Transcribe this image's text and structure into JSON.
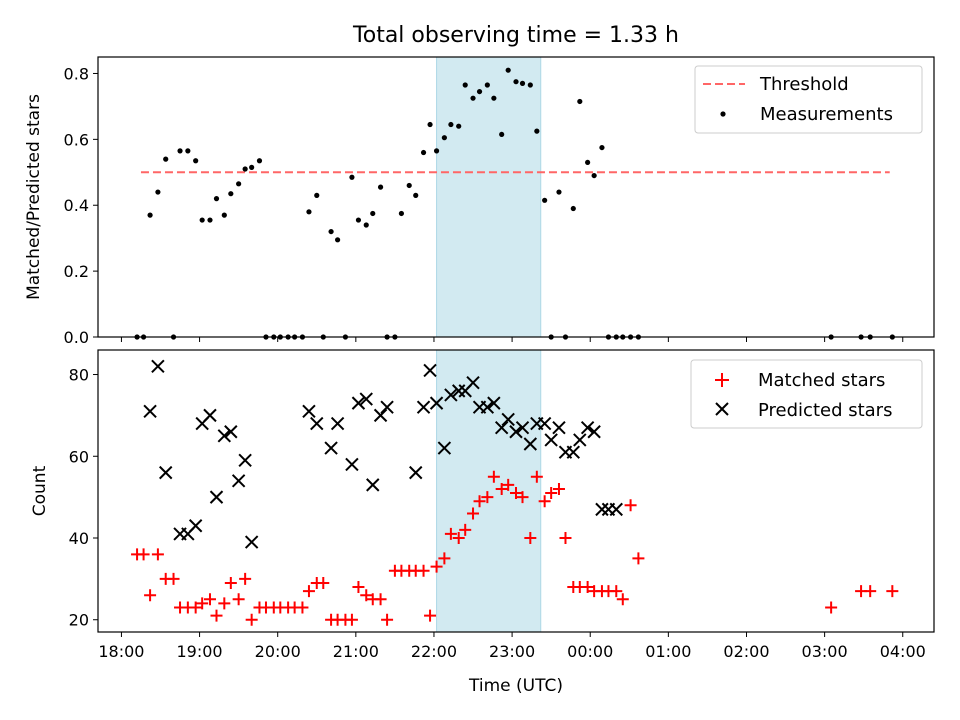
{
  "chart_data": {
    "title": "Total observing time = 1.33 h",
    "x_axis": {
      "label": "Time (UTC)",
      "ticks": [
        "18:00",
        "19:00",
        "20:00",
        "21:00",
        "22:00",
        "23:00",
        "00:00",
        "01:00",
        "02:00",
        "03:00",
        "04:00"
      ],
      "range_hours_since_18": [
        -0.3,
        10.4
      ]
    },
    "highlight_span": {
      "from": "22:02",
      "to": "23:22",
      "color": "#add8e6"
    },
    "panels": [
      {
        "type": "scatter",
        "ylabel": "Matched/Predicted stars",
        "ylim": [
          0,
          0.85
        ],
        "yticks": [
          "0.0",
          "0.2",
          "0.4",
          "0.6",
          "0.8"
        ],
        "legend_position": "top-right",
        "series": [
          {
            "name": "Threshold",
            "kind": "dashed-line",
            "color": "#ff6666",
            "x": [
              "18:15",
              "03:50"
            ],
            "y": [
              0.5,
              0.5
            ]
          },
          {
            "name": "Measurements",
            "kind": "dots",
            "color": "#000000",
            "x": [
              "18:12",
              "18:17",
              "18:22",
              "18:28",
              "18:34",
              "18:40",
              "18:45",
              "18:51",
              "18:57",
              "19:02",
              "19:08",
              "19:13",
              "19:19",
              "19:24",
              "19:30",
              "19:35",
              "19:40",
              "19:46",
              "19:51",
              "19:57",
              "20:02",
              "20:08",
              "20:13",
              "20:19",
              "20:24",
              "20:30",
              "20:35",
              "20:41",
              "20:46",
              "20:52",
              "20:57",
              "21:02",
              "21:08",
              "21:13",
              "21:19",
              "21:24",
              "21:30",
              "21:35",
              "21:41",
              "21:46",
              "21:52",
              "21:57",
              "22:02",
              "22:08",
              "22:13",
              "22:19",
              "22:24",
              "22:30",
              "22:35",
              "22:41",
              "22:46",
              "22:52",
              "22:57",
              "23:03",
              "23:08",
              "23:14",
              "23:19",
              "23:25",
              "23:30",
              "23:36",
              "23:41",
              "23:47",
              "23:52",
              "23:58",
              "00:03",
              "00:09",
              "00:14",
              "00:20",
              "00:25",
              "00:31",
              "00:37",
              "03:05",
              "03:28",
              "03:35",
              "03:52"
            ],
            "y": [
              0,
              0,
              0.37,
              0.44,
              0.54,
              0,
              0.565,
              0.565,
              0.535,
              0.355,
              0.355,
              0.42,
              0.37,
              0.435,
              0.465,
              0.51,
              0.515,
              0.535,
              0,
              0,
              0,
              0,
              0,
              0,
              0.38,
              0.43,
              0,
              0.32,
              0.295,
              0,
              0.485,
              0.355,
              0.34,
              0.375,
              0.455,
              0,
              0,
              0.375,
              0.46,
              0.43,
              0.56,
              0.645,
              0.565,
              0.605,
              0.645,
              0.64,
              0.765,
              0.725,
              0.745,
              0.765,
              0.725,
              0.615,
              0.81,
              0.775,
              0.77,
              0.765,
              0.625,
              0.415,
              0,
              0.44,
              0,
              0.39,
              0.715,
              0.53,
              0.49,
              0.575,
              0,
              0,
              0,
              0,
              0,
              0,
              0,
              0,
              0
            ]
          }
        ]
      },
      {
        "type": "scatter",
        "ylabel": "Count",
        "ylim": [
          17,
          86
        ],
        "yticks": [
          "20",
          "40",
          "60",
          "80"
        ],
        "legend_position": "top-right",
        "series": [
          {
            "name": "Matched stars",
            "marker": "plus",
            "color": "#ff0000",
            "x": [
              "18:12",
              "18:17",
              "18:22",
              "18:28",
              "18:34",
              "18:40",
              "18:45",
              "18:51",
              "18:57",
              "19:02",
              "19:08",
              "19:13",
              "19:19",
              "19:24",
              "19:30",
              "19:35",
              "19:40",
              "19:46",
              "19:51",
              "19:57",
              "20:02",
              "20:08",
              "20:13",
              "20:19",
              "20:24",
              "20:30",
              "20:35",
              "20:41",
              "20:46",
              "20:52",
              "20:57",
              "21:02",
              "21:08",
              "21:13",
              "21:19",
              "21:24",
              "21:30",
              "21:35",
              "21:41",
              "21:46",
              "21:52",
              "21:57",
              "22:02",
              "22:08",
              "22:13",
              "22:19",
              "22:24",
              "22:30",
              "22:35",
              "22:41",
              "22:46",
              "22:52",
              "22:57",
              "23:03",
              "23:08",
              "23:14",
              "23:19",
              "23:25",
              "23:30",
              "23:36",
              "23:41",
              "23:47",
              "23:52",
              "23:58",
              "00:03",
              "00:09",
              "00:14",
              "00:20",
              "00:25",
              "00:31",
              "00:37",
              "03:05",
              "03:28",
              "03:35",
              "03:52"
            ],
            "y": [
              36,
              36,
              26,
              36,
              30,
              30,
              23,
              23,
              23,
              24,
              25,
              21,
              24,
              29,
              25,
              30,
              20,
              23,
              23,
              23,
              23,
              23,
              23,
              23,
              27,
              29,
              29,
              20,
              20,
              20,
              20,
              28,
              26,
              25,
              25,
              20,
              32,
              32,
              32,
              32,
              32,
              21,
              33,
              35,
              41,
              40,
              42,
              46,
              49,
              50,
              55,
              52,
              53,
              51,
              50,
              40,
              55,
              49,
              51,
              52,
              40,
              28,
              28,
              28,
              27,
              27,
              27,
              27,
              25,
              48,
              35,
              23,
              27,
              27,
              27
            ]
          },
          {
            "name": "Predicted stars",
            "marker": "x",
            "color": "#000000",
            "x": [
              "18:22",
              "18:28",
              "18:34",
              "18:45",
              "18:51",
              "18:57",
              "19:02",
              "19:08",
              "19:13",
              "19:19",
              "19:24",
              "19:30",
              "19:35",
              "19:40",
              "20:24",
              "20:30",
              "20:41",
              "20:46",
              "20:57",
              "21:02",
              "21:08",
              "21:13",
              "21:19",
              "21:24",
              "21:46",
              "21:52",
              "21:57",
              "22:02",
              "22:08",
              "22:13",
              "22:19",
              "22:24",
              "22:30",
              "22:35",
              "22:41",
              "22:46",
              "22:52",
              "22:57",
              "23:03",
              "23:08",
              "23:14",
              "23:19",
              "23:25",
              "23:30",
              "23:36",
              "23:41",
              "23:47",
              "23:52",
              "23:58",
              "00:03",
              "00:09",
              "00:14",
              "00:20"
            ],
            "y": [
              71,
              82,
              56,
              41,
              41,
              43,
              68,
              70,
              50,
              65,
              66,
              54,
              59,
              39,
              71,
              68,
              62,
              68,
              58,
              73,
              74,
              53,
              70,
              72,
              56,
              72,
              81,
              73,
              62,
              75,
              76,
              76,
              78,
              72,
              72,
              73,
              67,
              69,
              66,
              67,
              63,
              68,
              68,
              64,
              67,
              61,
              61,
              64,
              67,
              66,
              47,
              47,
              47
            ]
          }
        ]
      }
    ]
  }
}
